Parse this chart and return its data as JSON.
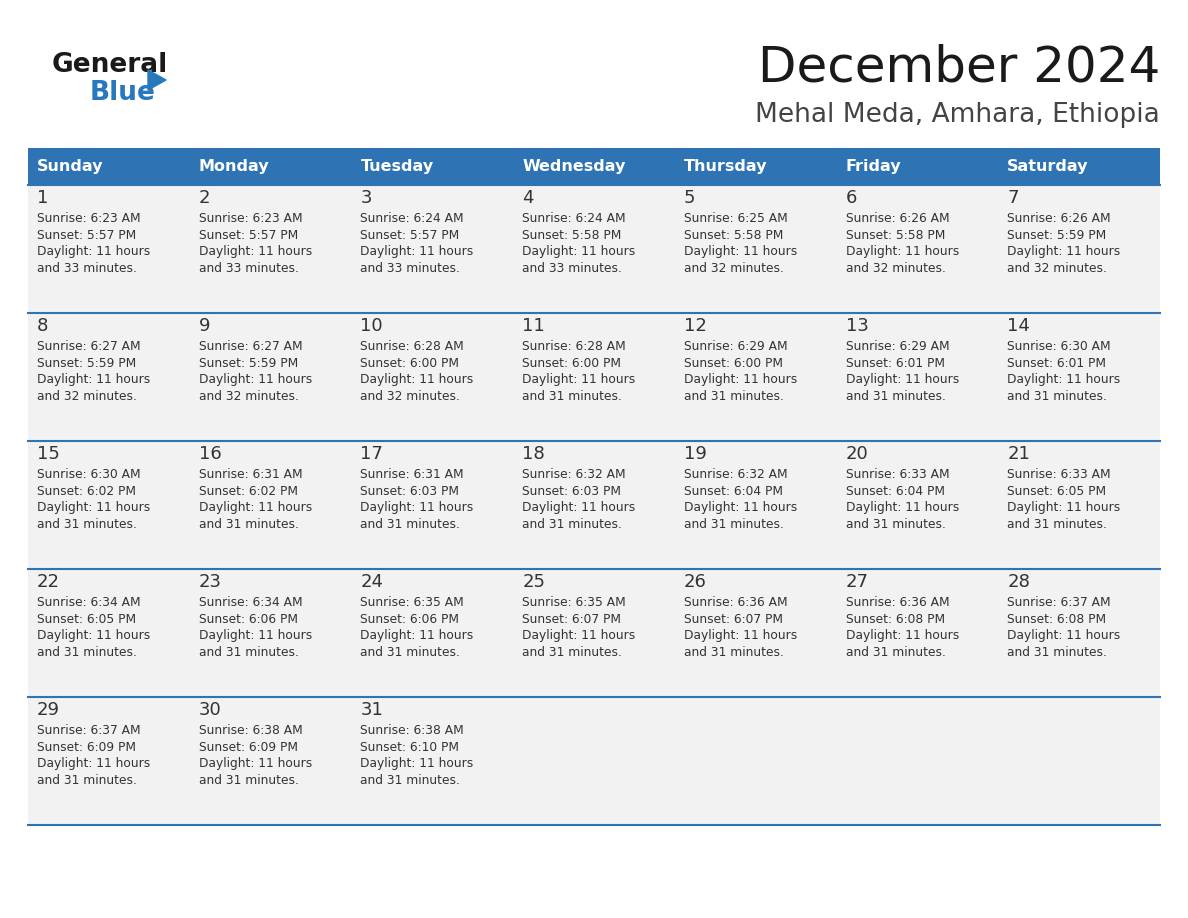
{
  "title": "December 2024",
  "subtitle": "Mehal Meda, Amhara, Ethiopia",
  "header_color": "#2E74B5",
  "header_text_color": "#FFFFFF",
  "title_color": "#1a1a1a",
  "subtitle_color": "#444444",
  "day_headers": [
    "Sunday",
    "Monday",
    "Tuesday",
    "Wednesday",
    "Thursday",
    "Friday",
    "Saturday"
  ],
  "cell_bg_color": "#F2F2F2",
  "separator_color": "#2E74B5",
  "day_number_color": "#333333",
  "content_color": "#333333",
  "weeks": [
    {
      "days": [
        {
          "day": 1,
          "sunrise": "6:23 AM",
          "sunset": "5:57 PM",
          "daylight_hours": 11,
          "daylight_minutes": 33
        },
        {
          "day": 2,
          "sunrise": "6:23 AM",
          "sunset": "5:57 PM",
          "daylight_hours": 11,
          "daylight_minutes": 33
        },
        {
          "day": 3,
          "sunrise": "6:24 AM",
          "sunset": "5:57 PM",
          "daylight_hours": 11,
          "daylight_minutes": 33
        },
        {
          "day": 4,
          "sunrise": "6:24 AM",
          "sunset": "5:58 PM",
          "daylight_hours": 11,
          "daylight_minutes": 33
        },
        {
          "day": 5,
          "sunrise": "6:25 AM",
          "sunset": "5:58 PM",
          "daylight_hours": 11,
          "daylight_minutes": 32
        },
        {
          "day": 6,
          "sunrise": "6:26 AM",
          "sunset": "5:58 PM",
          "daylight_hours": 11,
          "daylight_minutes": 32
        },
        {
          "day": 7,
          "sunrise": "6:26 AM",
          "sunset": "5:59 PM",
          "daylight_hours": 11,
          "daylight_minutes": 32
        }
      ]
    },
    {
      "days": [
        {
          "day": 8,
          "sunrise": "6:27 AM",
          "sunset": "5:59 PM",
          "daylight_hours": 11,
          "daylight_minutes": 32
        },
        {
          "day": 9,
          "sunrise": "6:27 AM",
          "sunset": "5:59 PM",
          "daylight_hours": 11,
          "daylight_minutes": 32
        },
        {
          "day": 10,
          "sunrise": "6:28 AM",
          "sunset": "6:00 PM",
          "daylight_hours": 11,
          "daylight_minutes": 32
        },
        {
          "day": 11,
          "sunrise": "6:28 AM",
          "sunset": "6:00 PM",
          "daylight_hours": 11,
          "daylight_minutes": 31
        },
        {
          "day": 12,
          "sunrise": "6:29 AM",
          "sunset": "6:00 PM",
          "daylight_hours": 11,
          "daylight_minutes": 31
        },
        {
          "day": 13,
          "sunrise": "6:29 AM",
          "sunset": "6:01 PM",
          "daylight_hours": 11,
          "daylight_minutes": 31
        },
        {
          "day": 14,
          "sunrise": "6:30 AM",
          "sunset": "6:01 PM",
          "daylight_hours": 11,
          "daylight_minutes": 31
        }
      ]
    },
    {
      "days": [
        {
          "day": 15,
          "sunrise": "6:30 AM",
          "sunset": "6:02 PM",
          "daylight_hours": 11,
          "daylight_minutes": 31
        },
        {
          "day": 16,
          "sunrise": "6:31 AM",
          "sunset": "6:02 PM",
          "daylight_hours": 11,
          "daylight_minutes": 31
        },
        {
          "day": 17,
          "sunrise": "6:31 AM",
          "sunset": "6:03 PM",
          "daylight_hours": 11,
          "daylight_minutes": 31
        },
        {
          "day": 18,
          "sunrise": "6:32 AM",
          "sunset": "6:03 PM",
          "daylight_hours": 11,
          "daylight_minutes": 31
        },
        {
          "day": 19,
          "sunrise": "6:32 AM",
          "sunset": "6:04 PM",
          "daylight_hours": 11,
          "daylight_minutes": 31
        },
        {
          "day": 20,
          "sunrise": "6:33 AM",
          "sunset": "6:04 PM",
          "daylight_hours": 11,
          "daylight_minutes": 31
        },
        {
          "day": 21,
          "sunrise": "6:33 AM",
          "sunset": "6:05 PM",
          "daylight_hours": 11,
          "daylight_minutes": 31
        }
      ]
    },
    {
      "days": [
        {
          "day": 22,
          "sunrise": "6:34 AM",
          "sunset": "6:05 PM",
          "daylight_hours": 11,
          "daylight_minutes": 31
        },
        {
          "day": 23,
          "sunrise": "6:34 AM",
          "sunset": "6:06 PM",
          "daylight_hours": 11,
          "daylight_minutes": 31
        },
        {
          "day": 24,
          "sunrise": "6:35 AM",
          "sunset": "6:06 PM",
          "daylight_hours": 11,
          "daylight_minutes": 31
        },
        {
          "day": 25,
          "sunrise": "6:35 AM",
          "sunset": "6:07 PM",
          "daylight_hours": 11,
          "daylight_minutes": 31
        },
        {
          "day": 26,
          "sunrise": "6:36 AM",
          "sunset": "6:07 PM",
          "daylight_hours": 11,
          "daylight_minutes": 31
        },
        {
          "day": 27,
          "sunrise": "6:36 AM",
          "sunset": "6:08 PM",
          "daylight_hours": 11,
          "daylight_minutes": 31
        },
        {
          "day": 28,
          "sunrise": "6:37 AM",
          "sunset": "6:08 PM",
          "daylight_hours": 11,
          "daylight_minutes": 31
        }
      ]
    },
    {
      "days": [
        {
          "day": 29,
          "sunrise": "6:37 AM",
          "sunset": "6:09 PM",
          "daylight_hours": 11,
          "daylight_minutes": 31
        },
        {
          "day": 30,
          "sunrise": "6:38 AM",
          "sunset": "6:09 PM",
          "daylight_hours": 11,
          "daylight_minutes": 31
        },
        {
          "day": 31,
          "sunrise": "6:38 AM",
          "sunset": "6:10 PM",
          "daylight_hours": 11,
          "daylight_minutes": 31
        },
        null,
        null,
        null,
        null
      ]
    }
  ],
  "logo_general_color": "#1a1a1a",
  "logo_blue_color": "#2878BE",
  "logo_triangle_color": "#2878BE",
  "fig_width": 11.88,
  "fig_height": 9.18,
  "dpi": 100
}
